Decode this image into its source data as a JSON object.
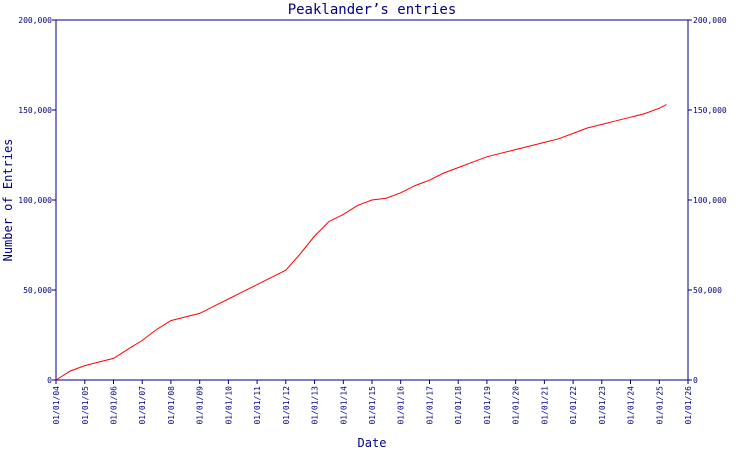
{
  "chart_data": {
    "type": "line",
    "title": "Peaklander’s entries",
    "xlabel": "Date",
    "ylabel": "Number of Entries",
    "xlim": [
      "2004-01-01",
      "2026-01-01"
    ],
    "ylim": [
      0,
      200000
    ],
    "y_ticks": [
      0,
      50000,
      100000,
      150000,
      200000
    ],
    "y_tick_labels": [
      "0",
      "50,000",
      "100,000",
      "150,000",
      "200,000"
    ],
    "y_tick_labels_right": true,
    "x_tick_labels": [
      "01/01/04",
      "01/01/05",
      "01/01/06",
      "01/01/07",
      "01/01/08",
      "01/01/09",
      "01/01/10",
      "01/01/11",
      "01/01/12",
      "01/01/13",
      "01/01/14",
      "01/01/15",
      "01/01/16",
      "01/01/17",
      "01/01/18",
      "01/01/19",
      "01/01/20",
      "01/01/21",
      "01/01/22",
      "01/01/23",
      "01/01/24",
      "01/01/25",
      "01/01/26"
    ],
    "grid": false,
    "colors": {
      "line": "#ff0000",
      "axis": "#000080",
      "background": "#ffffff"
    },
    "series": [
      {
        "x": [
          "2004-01-01",
          "2004-07-01",
          "2005-01-01",
          "2005-07-01",
          "2006-01-01",
          "2006-07-01",
          "2007-01-01",
          "2007-07-01",
          "2008-01-01",
          "2008-07-01",
          "2009-01-01",
          "2009-07-01",
          "2010-01-01",
          "2010-07-01",
          "2011-01-01",
          "2011-07-01",
          "2012-01-01",
          "2012-07-01",
          "2013-01-01",
          "2013-07-01",
          "2014-01-01",
          "2014-07-01",
          "2015-01-01",
          "2015-07-01",
          "2016-01-01",
          "2016-07-01",
          "2017-01-01",
          "2017-07-01",
          "2018-01-01",
          "2018-07-01",
          "2019-01-01",
          "2019-07-01",
          "2020-01-01",
          "2020-07-01",
          "2021-01-01",
          "2021-07-01",
          "2022-01-01",
          "2022-07-01",
          "2023-01-01",
          "2023-07-01",
          "2024-01-01",
          "2024-07-01",
          "2025-01-01",
          "2025-04-01"
        ],
        "y": [
          0,
          5000,
          8000,
          10000,
          12000,
          17000,
          22000,
          28000,
          33000,
          35000,
          37000,
          41000,
          45000,
          49000,
          53000,
          57000,
          61000,
          70000,
          80000,
          88000,
          92000,
          97000,
          100000,
          101000,
          104000,
          108000,
          111000,
          115000,
          118000,
          121000,
          124000,
          126000,
          128000,
          130000,
          132000,
          134000,
          137000,
          140000,
          142000,
          144000,
          146000,
          148000,
          151000,
          153000
        ]
      }
    ]
  }
}
